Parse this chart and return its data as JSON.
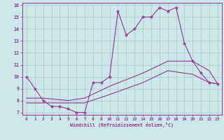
{
  "xlabel": "Windchill (Refroidissement éolien,°C)",
  "xlim": [
    -0.5,
    23.5
  ],
  "ylim": [
    6.8,
    16.2
  ],
  "xticks": [
    0,
    1,
    2,
    3,
    4,
    5,
    6,
    7,
    8,
    9,
    10,
    11,
    12,
    13,
    14,
    15,
    16,
    17,
    18,
    19,
    20,
    21,
    22,
    23
  ],
  "yticks": [
    7,
    8,
    9,
    10,
    11,
    12,
    13,
    14,
    15,
    16
  ],
  "bg_color": "#cce8e8",
  "grid_color": "#a8cccc",
  "line_color": "#993399",
  "line1_x": [
    0,
    1,
    2,
    3,
    4,
    5,
    6,
    7,
    8,
    9,
    10,
    11,
    12,
    13,
    14,
    15,
    16,
    17,
    18,
    19,
    20,
    21,
    22,
    23
  ],
  "line1_y": [
    10.0,
    9.0,
    8.0,
    7.5,
    7.5,
    7.3,
    7.0,
    7.0,
    9.5,
    9.5,
    10.0,
    15.5,
    13.5,
    14.0,
    15.0,
    15.0,
    15.8,
    15.5,
    15.8,
    12.8,
    11.3,
    10.3,
    9.5,
    9.4
  ],
  "line2_x": [
    0,
    2,
    5,
    7,
    10,
    14,
    17,
    20,
    22,
    23
  ],
  "line2_y": [
    8.2,
    8.2,
    8.0,
    8.2,
    9.2,
    10.3,
    11.3,
    11.3,
    10.5,
    9.4
  ],
  "line3_x": [
    0,
    2,
    5,
    7,
    10,
    14,
    17,
    20,
    22,
    23
  ],
  "line3_y": [
    7.8,
    7.8,
    7.8,
    7.8,
    8.5,
    9.5,
    10.5,
    10.2,
    9.5,
    9.4
  ]
}
